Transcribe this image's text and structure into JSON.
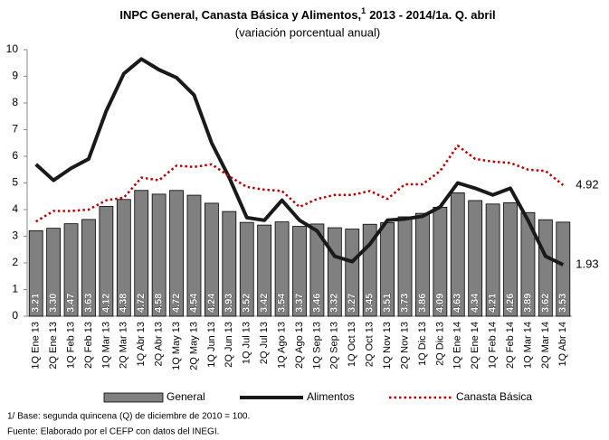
{
  "chart_data": {
    "type": "bar_line",
    "title": "INPC General, Canasta Básica y Alimentos,",
    "title_note": "1",
    "title_period": "2013 - 2014/1a. Q. abril",
    "subtitle": "(variación porcentual anual)",
    "categories": [
      "1Q Ene 13",
      "2Q Ene 13",
      "1Q Feb 13",
      "2Q Feb 13",
      "1Q Mar 13",
      "2Q Mar 13",
      "1Q Abr 13",
      "2Q Abr 13",
      "1Q May 13",
      "2Q May 13",
      "1Q Jun 13",
      "2Q Jun 13",
      "1Q Jul 13",
      "2Q Jul 13",
      "1Q Ago 13",
      "2Q Ago 13",
      "1Q Sep 13",
      "2Q Sep 13",
      "1Q Oct 13",
      "2Q Oct 13",
      "1Q Nov 13",
      "2Q Nov 13",
      "1Q Dic 13",
      "2Q Dic 13",
      "1Q Ene 14",
      "2Q Ene 14",
      "1Q Feb 14",
      "2Q Feb 14",
      "1Q Mar 14",
      "2Q Mar 14",
      "1Q Abr 14"
    ],
    "series": [
      {
        "name": "General",
        "kind": "bar",
        "color": "#808080",
        "values": [
          3.21,
          3.3,
          3.47,
          3.63,
          4.12,
          4.38,
          4.72,
          4.58,
          4.72,
          4.54,
          4.24,
          3.93,
          3.52,
          3.42,
          3.54,
          3.37,
          3.46,
          3.32,
          3.27,
          3.45,
          3.51,
          3.73,
          3.86,
          4.09,
          4.63,
          4.34,
          4.21,
          4.26,
          3.89,
          3.62,
          3.53
        ],
        "value_labels": [
          "3.21",
          "3.30",
          "3.47",
          "3.63",
          "4.12",
          "4.38",
          "4.72",
          "4.58",
          "4.72",
          "4.54",
          "4.24",
          "3.93",
          "3.52",
          "3.42",
          "3.54",
          "3.37",
          "3.46",
          "3.32",
          "3.27",
          "3.45",
          "3.51",
          "3.73",
          "3.86",
          "4.09",
          "4.63",
          "4.34",
          "4.21",
          "4.26",
          "3.89",
          "3.62",
          "3.53"
        ]
      },
      {
        "name": "Alimentos",
        "kind": "line",
        "color": "#1a1a1a",
        "values": [
          5.7,
          5.1,
          5.55,
          5.9,
          7.7,
          9.1,
          9.65,
          9.25,
          8.95,
          8.3,
          6.5,
          5.2,
          3.7,
          3.6,
          4.35,
          3.6,
          3.2,
          2.25,
          2.05,
          2.7,
          3.6,
          3.65,
          3.75,
          4.1,
          5.0,
          4.8,
          4.55,
          4.8,
          3.6,
          2.25,
          1.93
        ]
      },
      {
        "name": "Canasta Básica",
        "kind": "dotted",
        "color": "#c00000",
        "values": [
          3.55,
          3.95,
          3.95,
          4.0,
          4.35,
          4.45,
          5.2,
          5.1,
          5.65,
          5.6,
          5.7,
          5.25,
          4.85,
          4.75,
          4.7,
          4.1,
          4.4,
          4.55,
          4.55,
          4.7,
          4.4,
          4.95,
          4.95,
          5.45,
          6.4,
          5.9,
          5.8,
          5.75,
          5.5,
          5.45,
          4.92
        ]
      }
    ],
    "ylim": [
      0,
      10
    ],
    "yticks": [
      0,
      1,
      2,
      3,
      4,
      5,
      6,
      7,
      8,
      9,
      10
    ],
    "grid": false,
    "footnotes": [
      "1/ Base: segunda quincena (Q) de diciembre de 2010 = 100.",
      "Fuente: Elaborado por el CEFP con  datos del INEGI."
    ]
  }
}
